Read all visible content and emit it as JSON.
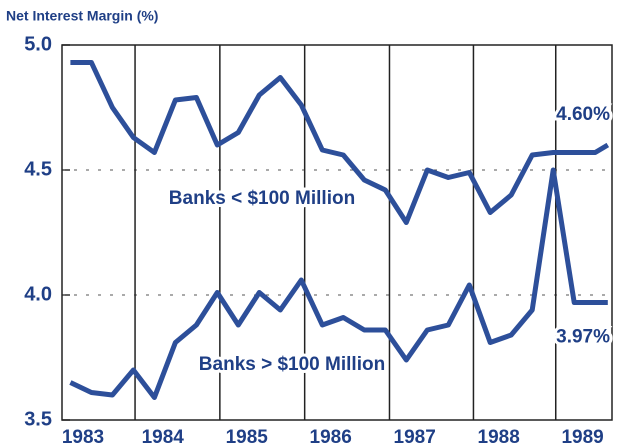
{
  "chart_data": {
    "type": "line",
    "y_axis_label": "Net Interest Margin (%)",
    "x": [
      1983.0,
      1983.25,
      1983.5,
      1983.75,
      1984.0,
      1984.25,
      1984.5,
      1984.75,
      1985.0,
      1985.25,
      1985.5,
      1985.75,
      1986.0,
      1986.25,
      1986.5,
      1986.75,
      1987.0,
      1987.25,
      1987.5,
      1987.75,
      1988.0,
      1988.25,
      1988.5,
      1988.75,
      1989.0,
      1989.25,
      1989.4
    ],
    "series": [
      {
        "name": "Banks < $100 Million",
        "color": "#2d4f9a",
        "values": [
          4.93,
          4.93,
          4.75,
          4.63,
          4.57,
          4.78,
          4.79,
          4.6,
          4.65,
          4.8,
          4.87,
          4.76,
          4.58,
          4.56,
          4.46,
          4.42,
          4.29,
          4.5,
          4.47,
          4.49,
          4.33,
          4.4,
          4.56,
          4.57,
          4.57,
          4.57,
          4.6
        ]
      },
      {
        "name": "Banks > $100 Million",
        "color": "#2d4f9a",
        "values": [
          3.65,
          3.61,
          3.6,
          3.7,
          3.59,
          3.81,
          3.88,
          4.01,
          3.88,
          4.01,
          3.94,
          4.06,
          3.88,
          3.91,
          3.86,
          3.86,
          3.74,
          3.86,
          3.88,
          4.04,
          3.81,
          3.84,
          3.94,
          4.5,
          3.97,
          3.97,
          3.97
        ]
      }
    ],
    "annotations": [
      {
        "text": "4.60%",
        "value": 4.6
      },
      {
        "text": "3.97%",
        "value": 3.97
      }
    ],
    "xlim": [
      1982.9,
      1989.45
    ],
    "xticks": [
      {
        "value": 1983.15,
        "label": "1983"
      },
      {
        "value": 1984.1,
        "label": "1984"
      },
      {
        "value": 1985.1,
        "label": "1985"
      },
      {
        "value": 1986.1,
        "label": "1986"
      },
      {
        "value": 1987.1,
        "label": "1987"
      },
      {
        "value": 1988.1,
        "label": "1988"
      },
      {
        "value": 1989.1,
        "label": "1989"
      }
    ],
    "xgrid": [
      1983.77,
      1984.78,
      1985.79,
      1986.8,
      1987.8,
      1988.78
    ],
    "ylim": [
      3.5,
      5.0
    ],
    "yticks": [
      3.5,
      {
        "value": 4,
        "label": "4.0"
      },
      4.5,
      {
        "value": 5,
        "label": "5.0"
      }
    ],
    "grid": true
  }
}
